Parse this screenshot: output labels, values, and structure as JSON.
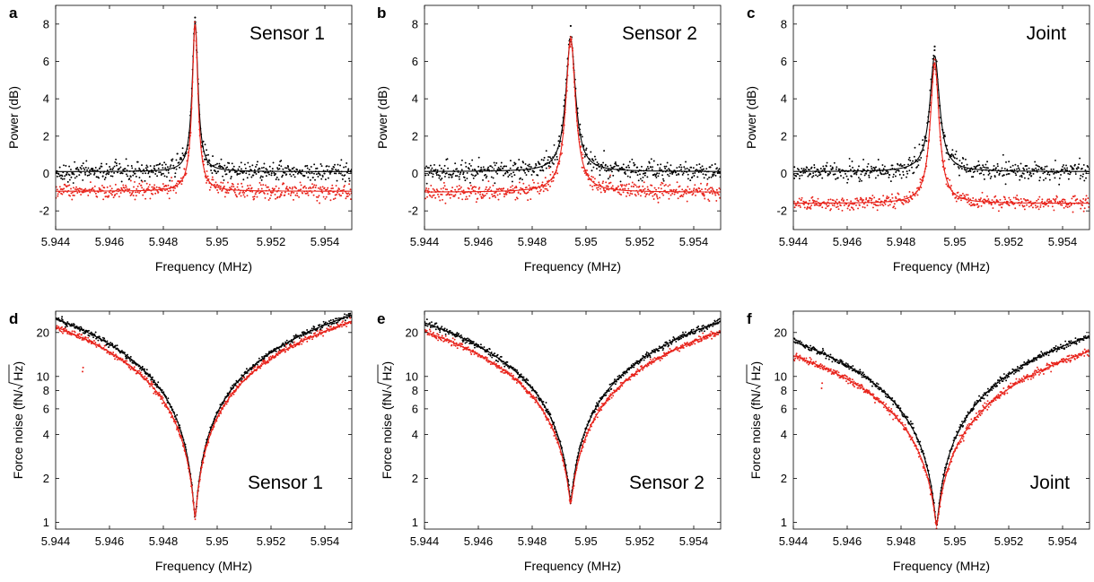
{
  "chart_data": [
    {
      "panel": "a",
      "type": "scatter",
      "label": "Sensor 1",
      "xlabel": "Frequency (MHz)",
      "ylabel": "Power (dB)",
      "xlim": [
        5.944,
        5.955
      ],
      "ylim": [
        -3,
        9
      ],
      "yscale": "linear",
      "xticks": [
        "5.944",
        "5.946",
        "5.948",
        "5.95",
        "5.952",
        "5.954"
      ],
      "yticks": [
        "-2",
        "0",
        "2",
        "4",
        "6",
        "8"
      ],
      "grid": false,
      "series": [
        {
          "color": "#000000",
          "model": "lorentzian_db",
          "base": 0.1,
          "center": 5.94918,
          "hwhm": 0.00013,
          "peak": 8.1,
          "noise": 0.35,
          "peak_point": 8.35
        },
        {
          "color": "#e8231b",
          "model": "lorentzian_db",
          "base": -0.95,
          "center": 5.94918,
          "hwhm": 0.00013,
          "peak": 8.0,
          "noise": 0.3,
          "peak_point": 7.9
        }
      ]
    },
    {
      "panel": "b",
      "type": "scatter",
      "label": "Sensor 2",
      "xlabel": "Frequency (MHz)",
      "ylabel": "Power (dB)",
      "xlim": [
        5.944,
        5.955
      ],
      "ylim": [
        -3,
        9
      ],
      "yscale": "linear",
      "xticks": [
        "5.944",
        "5.946",
        "5.948",
        "5.95",
        "5.952",
        "5.954"
      ],
      "yticks": [
        "-2",
        "0",
        "2",
        "4",
        "6",
        "8"
      ],
      "grid": false,
      "series": [
        {
          "color": "#000000",
          "model": "lorentzian_db",
          "base": 0.1,
          "center": 5.94943,
          "hwhm": 0.00022,
          "peak": 7.2,
          "noise": 0.35,
          "peak_point": 7.9
        },
        {
          "color": "#e8231b",
          "model": "lorentzian_db",
          "base": -1.0,
          "center": 5.94943,
          "hwhm": 0.00022,
          "peak": 7.2,
          "noise": 0.3,
          "peak_point": 7.3
        }
      ]
    },
    {
      "panel": "c",
      "type": "scatter",
      "label": "Joint",
      "xlabel": "Frequency (MHz)",
      "ylabel": "Power (dB)",
      "xlim": [
        5.944,
        5.955
      ],
      "ylim": [
        -3,
        9
      ],
      "yscale": "linear",
      "xticks": [
        "5.944",
        "5.946",
        "5.948",
        "5.95",
        "5.952",
        "5.954"
      ],
      "yticks": [
        "-2",
        "0",
        "2",
        "4",
        "6",
        "8"
      ],
      "grid": false,
      "series": [
        {
          "color": "#000000",
          "model": "lorentzian_db",
          "base": 0.1,
          "center": 5.94925,
          "hwhm": 0.00022,
          "peak": 6.3,
          "noise": 0.35,
          "peak_point": 6.8
        },
        {
          "color": "#e8231b",
          "model": "lorentzian_db",
          "base": -1.6,
          "center": 5.94925,
          "hwhm": 0.0002,
          "peak": 5.9,
          "noise": 0.25,
          "peak_point": 6.1
        }
      ]
    },
    {
      "panel": "d",
      "type": "scatter",
      "label": "Sensor 1",
      "xlabel": "Frequency (MHz)",
      "ylabel": "Force noise (fN/√Hz)",
      "ylabel_prefix": "Force noise (fN/",
      "ylabel_root": "Hz",
      "ylabel_suffix": ")",
      "xlim": [
        5.944,
        5.955
      ],
      "ylim": [
        0.9,
        28
      ],
      "yscale": "log",
      "xticks": [
        "5.944",
        "5.946",
        "5.948",
        "5.95",
        "5.952",
        "5.954"
      ],
      "yticks": [
        "1",
        "2",
        "4",
        "6",
        "8",
        "10",
        "20"
      ],
      "grid": false,
      "series": [
        {
          "color": "#000000",
          "model": "force_noise",
          "center": 5.94918,
          "min": 1.08,
          "left_end": 25.0,
          "right_end": 26.5,
          "noise": 0.025
        },
        {
          "color": "#e8231b",
          "model": "force_noise",
          "center": 5.94918,
          "min": 1.1,
          "left_end": 22.0,
          "right_end": 24.0,
          "noise": 0.025,
          "outliers": [
            [
              5.945,
              10.8
            ],
            [
              5.94502,
              11.5
            ]
          ]
        }
      ]
    },
    {
      "panel": "e",
      "type": "scatter",
      "label": "Sensor 2",
      "xlabel": "Frequency (MHz)",
      "ylabel": "Force noise (fN/√Hz)",
      "ylabel_prefix": "Force noise (fN/",
      "ylabel_root": "Hz",
      "ylabel_suffix": ")",
      "xlim": [
        5.944,
        5.955
      ],
      "ylim": [
        0.9,
        28
      ],
      "yscale": "log",
      "xticks": [
        "5.944",
        "5.946",
        "5.948",
        "5.95",
        "5.952",
        "5.954"
      ],
      "yticks": [
        "1",
        "2",
        "4",
        "6",
        "8",
        "10",
        "20"
      ],
      "grid": false,
      "series": [
        {
          "color": "#000000",
          "model": "force_noise",
          "center": 5.94943,
          "min": 1.4,
          "left_end": 23.5,
          "right_end": 24.0,
          "noise": 0.025
        },
        {
          "color": "#e8231b",
          "model": "force_noise",
          "center": 5.94943,
          "min": 1.35,
          "left_end": 20.5,
          "right_end": 20.5,
          "noise": 0.025
        }
      ]
    },
    {
      "panel": "f",
      "type": "scatter",
      "label": "Joint",
      "xlabel": "Frequency (MHz)",
      "ylabel": "Force noise (fN/√Hz)",
      "ylabel_prefix": "Force noise (fN/",
      "ylabel_root": "Hz",
      "ylabel_suffix": ")",
      "xlim": [
        5.944,
        5.955
      ],
      "ylim": [
        0.9,
        28
      ],
      "yscale": "log",
      "xticks": [
        "5.944",
        "5.946",
        "5.948",
        "5.95",
        "5.952",
        "5.954"
      ],
      "yticks": [
        "1",
        "2",
        "4",
        "6",
        "8",
        "10",
        "20"
      ],
      "grid": false,
      "series": [
        {
          "color": "#000000",
          "model": "force_noise",
          "center": 5.94932,
          "min": 0.95,
          "left_end": 17.5,
          "right_end": 19.0,
          "noise": 0.025
        },
        {
          "color": "#e8231b",
          "model": "force_noise",
          "center": 5.94932,
          "min": 0.95,
          "left_end": 14.0,
          "right_end": 15.0,
          "noise": 0.03,
          "outliers": [
            [
              5.94505,
              8.3
            ],
            [
              5.94507,
              9.0
            ]
          ]
        }
      ]
    }
  ]
}
